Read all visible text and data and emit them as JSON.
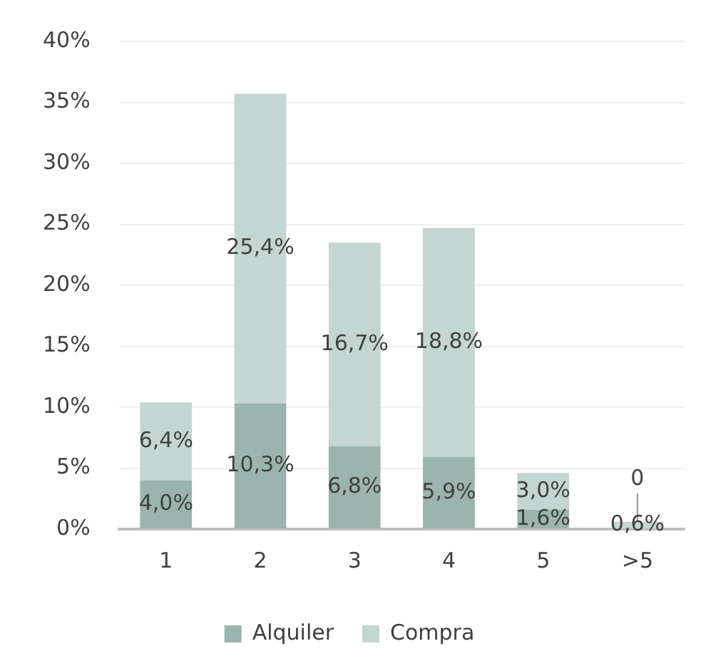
{
  "chart_data": {
    "type": "bar",
    "stacked": true,
    "categories": [
      "1",
      "2",
      "3",
      "4",
      "5",
      ">5"
    ],
    "series": [
      {
        "name": "Alquiler",
        "color": "#9bb5ae",
        "values": [
          4.0,
          10.3,
          6.8,
          5.9,
          1.6,
          0
        ],
        "value_labels": [
          "4,0%",
          "10,3%",
          "6,8%",
          "5,9%",
          "1,6%",
          "0"
        ]
      },
      {
        "name": "Compra",
        "color": "#c3d6d1",
        "values": [
          6.4,
          25.4,
          16.7,
          18.8,
          3.0,
          0.6
        ],
        "value_labels": [
          "6,4%",
          "25,4%",
          "16,7%",
          "18,8%",
          "3,0%",
          "0,6%"
        ]
      }
    ],
    "ylim": [
      0,
      40
    ],
    "yticks": [
      {
        "value": 0,
        "label": "0%"
      },
      {
        "value": 5,
        "label": "5%"
      },
      {
        "value": 10,
        "label": "10%"
      },
      {
        "value": 15,
        "label": "15%"
      },
      {
        "value": 20,
        "label": "20%"
      },
      {
        "value": 25,
        "label": "25%"
      },
      {
        "value": 30,
        "label": "30%"
      },
      {
        "value": 35,
        "label": "35%"
      },
      {
        "value": 40,
        "label": "40%"
      }
    ],
    "grid": "y",
    "legend": "bottom"
  }
}
